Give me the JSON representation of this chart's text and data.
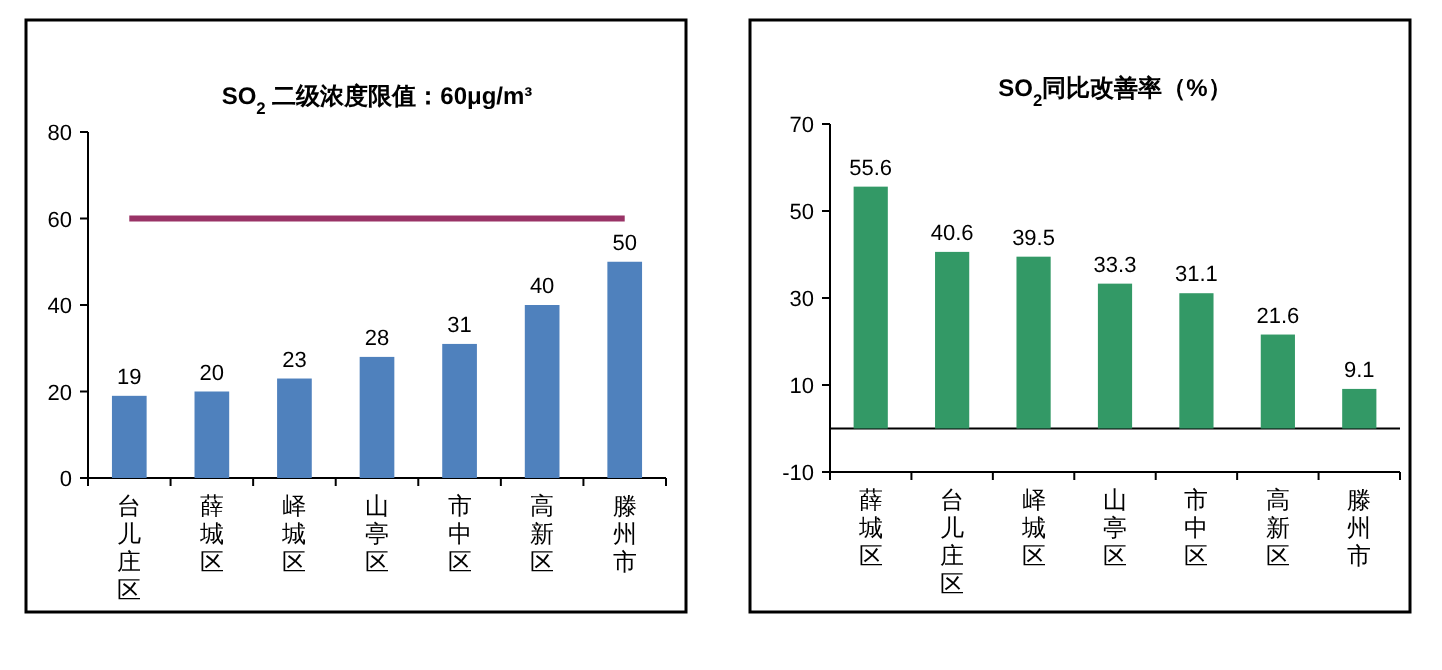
{
  "chart_data": [
    {
      "type": "bar",
      "title": "SO$_{2}$  二级浓度限值：60μg/m³",
      "categories": [
        "台儿庄区",
        "薛城区",
        "峄城区",
        "山亭区",
        "市中区",
        "高新区",
        "滕州市"
      ],
      "series": [
        {
          "color": "#4f81bd",
          "values": [
            19,
            20,
            23,
            28,
            31,
            40,
            50
          ]
        }
      ],
      "ylim": [
        0,
        80
      ],
      "yticks": [
        0,
        20,
        40,
        60,
        80
      ],
      "data_labels": true,
      "grid": false,
      "ref_lines": [
        {
          "axis": "y",
          "value": 60,
          "color": "#993366"
        }
      ]
    },
    {
      "type": "bar",
      "title": "SO$_{2}$同比改善率（%）",
      "categories": [
        "薛城区",
        "台儿庄区",
        "峄城区",
        "山亭区",
        "市中区",
        "高新区",
        "滕州市"
      ],
      "series": [
        {
          "color": "#339966",
          "values": [
            55.6,
            40.6,
            39.5,
            33.3,
            31.1,
            21.6,
            9.1
          ]
        }
      ],
      "ylim": [
        -10,
        70
      ],
      "yticks": [
        -10,
        10,
        30,
        50,
        70
      ],
      "data_labels": true,
      "grid": false
    }
  ]
}
